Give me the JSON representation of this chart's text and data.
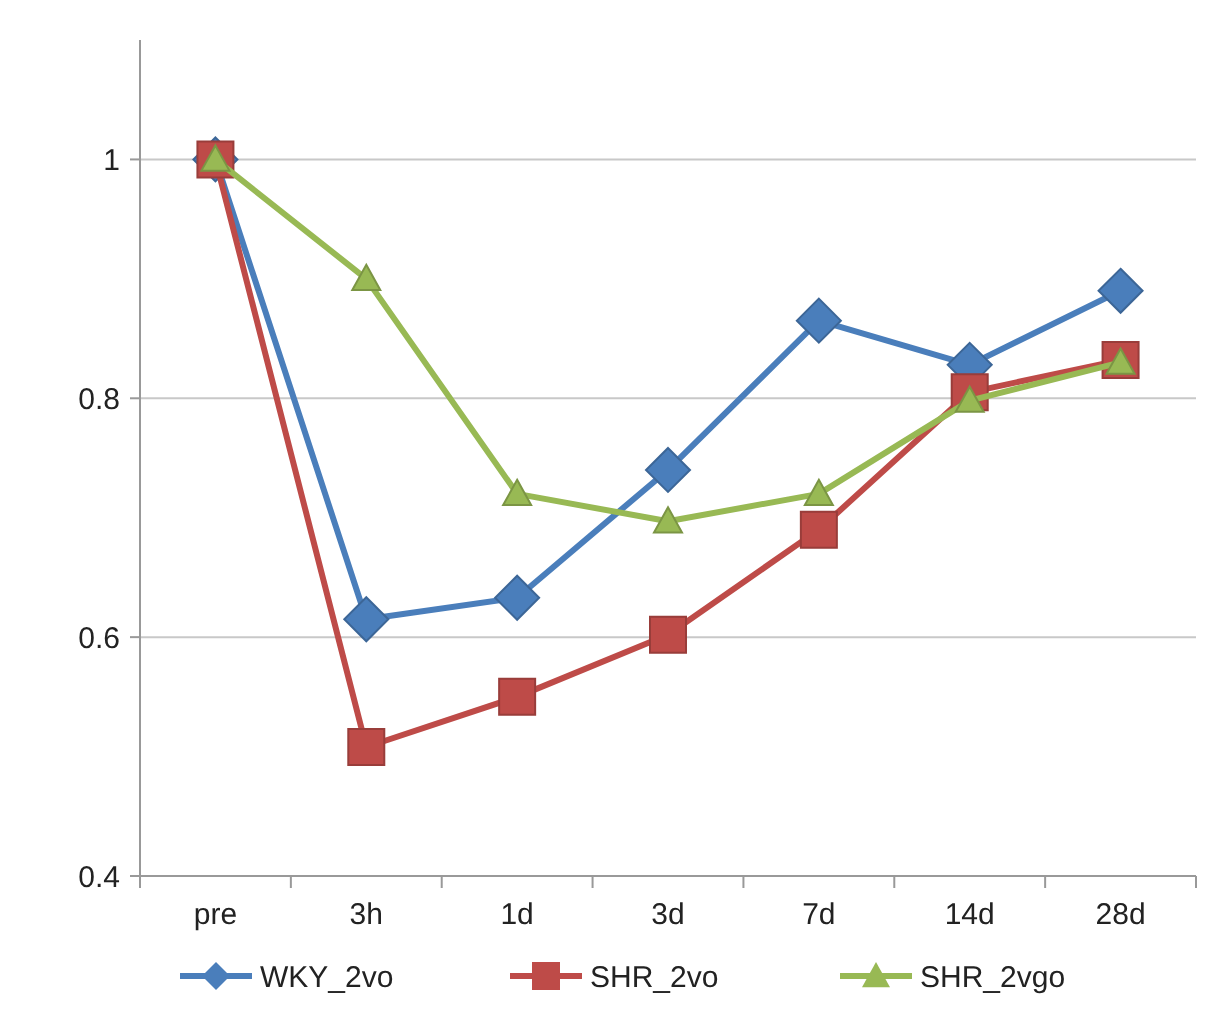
{
  "chart_data": {
    "type": "line",
    "categories": [
      "pre",
      "3h",
      "1d",
      "3d",
      "7d",
      "14d",
      "28d"
    ],
    "series": [
      {
        "name": "WKY_2vo",
        "color": "#4a7ebb",
        "marker": "diamond",
        "values": [
          1,
          0.615,
          0.633,
          0.74,
          0.865,
          0.828,
          0.89
        ]
      },
      {
        "name": "SHR_2vo",
        "color": "#be4b48",
        "marker": "square",
        "values": [
          1,
          0.508,
          0.55,
          0.602,
          0.69,
          0.805,
          0.832
        ]
      },
      {
        "name": "SHR_2vgo",
        "color": "#98b954",
        "marker": "triangle",
        "values": [
          1,
          0.9,
          0.72,
          0.697,
          0.72,
          0.798,
          0.83
        ]
      }
    ],
    "ylim": [
      0.4,
      1.1
    ],
    "yticks": [
      0.4,
      0.6,
      0.8,
      1
    ],
    "grid": "y",
    "legend": "bottom"
  }
}
